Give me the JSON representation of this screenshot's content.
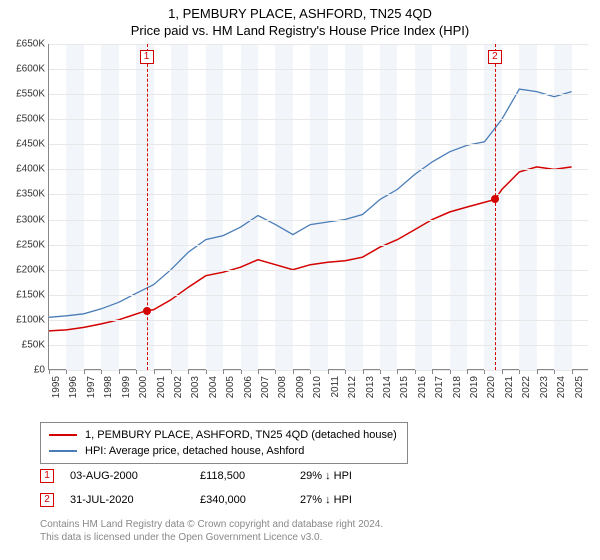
{
  "title_line1": "1, PEMBURY PLACE, ASHFORD, TN25 4QD",
  "title_line2": "Price paid vs. HM Land Registry's House Price Index (HPI)",
  "chart": {
    "type": "line",
    "background_color": "#ffffff",
    "grid_color": "#e8e8e8",
    "band_color": "#f2f6fa",
    "axis_color": "#888888",
    "x_years": [
      1995,
      1996,
      1997,
      1998,
      1999,
      2000,
      2001,
      2002,
      2003,
      2004,
      2005,
      2006,
      2007,
      2008,
      2009,
      2010,
      2011,
      2012,
      2013,
      2014,
      2015,
      2016,
      2017,
      2018,
      2019,
      2020,
      2021,
      2022,
      2023,
      2024,
      2025
    ],
    "xlim": [
      1995,
      2026
    ],
    "ylim": [
      0,
      650000
    ],
    "ytick_step": 50000,
    "yticks": [
      "£0",
      "£50K",
      "£100K",
      "£150K",
      "£200K",
      "£250K",
      "£300K",
      "£350K",
      "£400K",
      "£450K",
      "£500K",
      "£550K",
      "£600K",
      "£650K"
    ],
    "series_price": {
      "color": "#d40000",
      "width": 1.5,
      "points": [
        [
          1995,
          78000
        ],
        [
          1996,
          80000
        ],
        [
          1997,
          85000
        ],
        [
          1998,
          92000
        ],
        [
          1999,
          100000
        ],
        [
          2000.6,
          118500
        ],
        [
          2001,
          120000
        ],
        [
          2002,
          140000
        ],
        [
          2003,
          165000
        ],
        [
          2004,
          188000
        ],
        [
          2005,
          195000
        ],
        [
          2006,
          205000
        ],
        [
          2007,
          220000
        ],
        [
          2008,
          210000
        ],
        [
          2009,
          200000
        ],
        [
          2010,
          210000
        ],
        [
          2011,
          215000
        ],
        [
          2012,
          218000
        ],
        [
          2013,
          225000
        ],
        [
          2014,
          245000
        ],
        [
          2015,
          260000
        ],
        [
          2016,
          280000
        ],
        [
          2017,
          300000
        ],
        [
          2018,
          315000
        ],
        [
          2019,
          325000
        ],
        [
          2020.6,
          340000
        ],
        [
          2021,
          360000
        ],
        [
          2022,
          395000
        ],
        [
          2023,
          405000
        ],
        [
          2024,
          400000
        ],
        [
          2025,
          405000
        ]
      ]
    },
    "series_hpi": {
      "color": "#4a7db8",
      "width": 1.3,
      "points": [
        [
          1995,
          105000
        ],
        [
          1996,
          108000
        ],
        [
          1997,
          112000
        ],
        [
          1998,
          122000
        ],
        [
          1999,
          135000
        ],
        [
          2000,
          153000
        ],
        [
          2001,
          170000
        ],
        [
          2002,
          200000
        ],
        [
          2003,
          235000
        ],
        [
          2004,
          260000
        ],
        [
          2005,
          268000
        ],
        [
          2006,
          285000
        ],
        [
          2007,
          308000
        ],
        [
          2008,
          290000
        ],
        [
          2009,
          270000
        ],
        [
          2010,
          290000
        ],
        [
          2011,
          295000
        ],
        [
          2012,
          300000
        ],
        [
          2013,
          310000
        ],
        [
          2014,
          340000
        ],
        [
          2015,
          360000
        ],
        [
          2016,
          390000
        ],
        [
          2017,
          415000
        ],
        [
          2018,
          435000
        ],
        [
          2019,
          448000
        ],
        [
          2020,
          455000
        ],
        [
          2021,
          500000
        ],
        [
          2022,
          560000
        ],
        [
          2023,
          555000
        ],
        [
          2024,
          545000
        ],
        [
          2025,
          555000
        ]
      ]
    },
    "transactions": [
      {
        "n": "1",
        "year": 2000.6,
        "price": 118500,
        "color": "#d40000"
      },
      {
        "n": "2",
        "year": 2020.6,
        "price": 340000,
        "color": "#d40000"
      }
    ]
  },
  "legend": {
    "items": [
      {
        "color": "#d40000",
        "label": "1, PEMBURY PLACE, ASHFORD, TN25 4QD (detached house)"
      },
      {
        "color": "#4a7db8",
        "label": "HPI: Average price, detached house, Ashford"
      }
    ]
  },
  "tx_rows": [
    {
      "n": "1",
      "color": "#d40000",
      "date": "03-AUG-2000",
      "price": "£118,500",
      "diff": "29% ↓ HPI"
    },
    {
      "n": "2",
      "color": "#d40000",
      "date": "31-JUL-2020",
      "price": "£340,000",
      "diff": "27% ↓ HPI"
    }
  ],
  "footer_line1": "Contains HM Land Registry data © Crown copyright and database right 2024.",
  "footer_line2": "This data is licensed under the Open Government Licence v3.0."
}
